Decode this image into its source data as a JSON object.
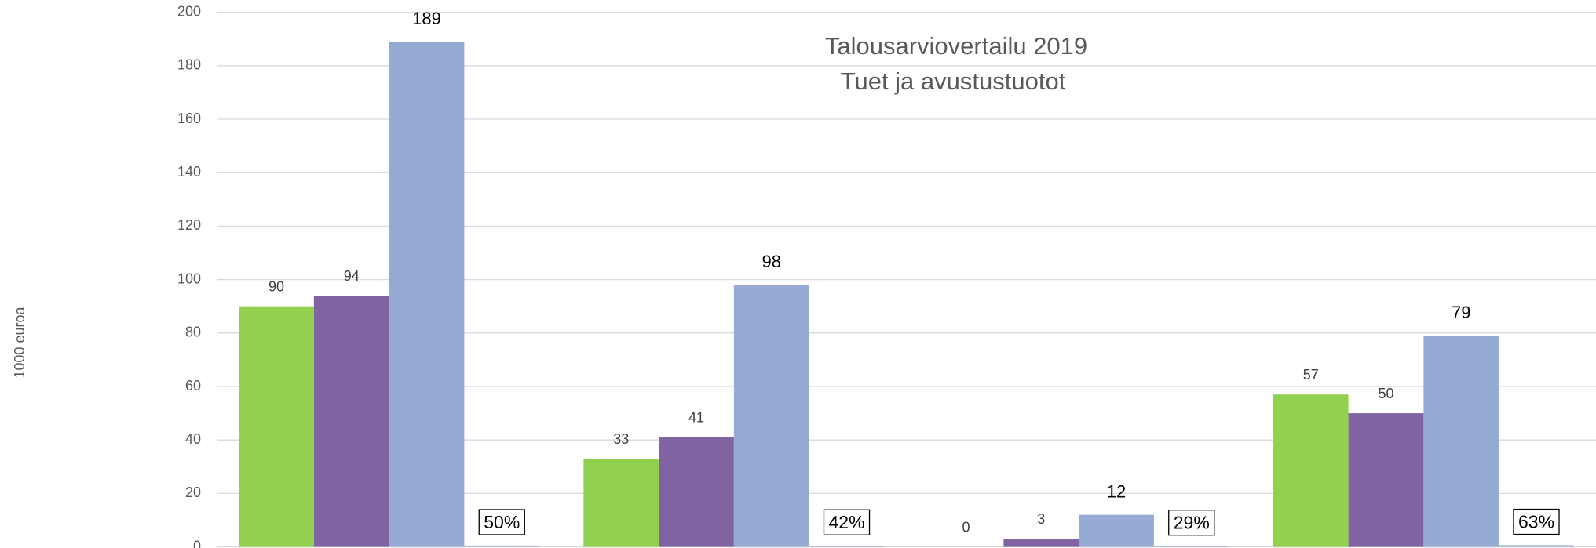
{
  "chart_data": {
    "type": "bar",
    "title": "Talousarviovertailu 2019",
    "subtitle": "Tuet ja avustustuotot",
    "y_label": "1000 euroa",
    "categories": [
      null,
      null,
      null,
      null
    ],
    "series": [
      {
        "color": "#92d050",
        "values": [
          90,
          33,
          0,
          57
        ]
      },
      {
        "color": "#8064a2",
        "values": [
          94,
          41,
          3,
          50
        ]
      },
      {
        "color": "#95abd3",
        "values": [
          189,
          98,
          12,
          79
        ]
      },
      {
        "color": "#95abd3",
        "values": [
          0.5,
          0.42,
          0.29,
          0.63
        ],
        "value_labels": [
          "50%",
          "42%",
          "29%",
          "63%"
        ]
      }
    ],
    "ylim": [
      0,
      200
    ],
    "yticks": [
      0,
      20,
      40,
      60,
      80,
      100,
      120,
      140,
      160,
      180,
      200
    ],
    "grid": true
  }
}
